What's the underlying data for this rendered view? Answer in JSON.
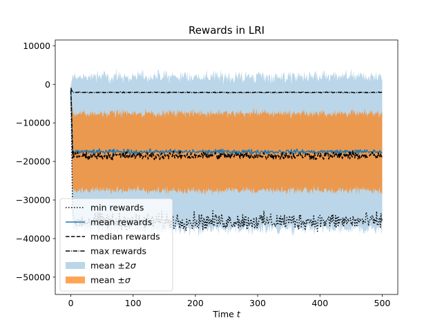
{
  "chart_data": {
    "type": "line",
    "title": "Rewards in LRI",
    "xlabel": "Time t",
    "xlabel_parts": {
      "text": "Time ",
      "var": "t"
    },
    "ylabel": "",
    "xlim": [
      -25,
      525
    ],
    "ylim": [
      -54500,
      11500
    ],
    "xticks": [
      0,
      100,
      200,
      300,
      400,
      500
    ],
    "yticks": [
      10000,
      0,
      -10000,
      -20000,
      -30000,
      -40000,
      -50000
    ],
    "grid": false,
    "legend_position": "lower-left",
    "n_steps": 500,
    "series": [
      {
        "name": "min rewards",
        "key": "min",
        "color": "#000000",
        "style": "dotted",
        "typical": -35500,
        "spread": 3200,
        "initial": -1000
      },
      {
        "name": "mean rewards",
        "key": "mean",
        "color": "#1f77b4",
        "style": "solid",
        "typical": -17500,
        "spread": 900,
        "initial": -1000
      },
      {
        "name": "median rewards",
        "key": "median",
        "color": "#000000",
        "style": "dashed",
        "typical": -18500,
        "spread": 1500,
        "initial": -1000
      },
      {
        "name": "max rewards",
        "key": "max",
        "color": "#000000",
        "style": "dashdot",
        "typical": -2100,
        "spread": 180,
        "initial": -1000
      }
    ],
    "bands": [
      {
        "name": "mean ±2σ",
        "name_parts": {
          "text": "mean ±2",
          "var": "σ"
        },
        "color": "#1f77b4",
        "alpha": 0.3,
        "upper_typical": 2000,
        "lower_typical": -37500,
        "spread": 2500
      },
      {
        "name": "mean ±σ",
        "name_parts": {
          "text": "mean ±",
          "var": "σ"
        },
        "color": "#ff7f0e",
        "alpha": 0.7,
        "upper_typical": -7500,
        "lower_typical": -27500,
        "spread": 1600
      }
    ]
  }
}
